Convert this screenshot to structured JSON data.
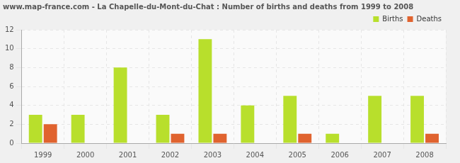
{
  "chart_data": {
    "type": "bar",
    "title": "www.map-france.com - La Chapelle-du-Mont-du-Chat : Number of births and deaths from 1999 to 2008",
    "categories": [
      "1999",
      "2000",
      "2001",
      "2002",
      "2003",
      "2004",
      "2005",
      "2006",
      "2007",
      "2008"
    ],
    "series": [
      {
        "name": "Births",
        "color": "#b8df2c",
        "values": [
          3,
          3,
          8,
          3,
          11,
          4,
          5,
          1,
          5,
          5
        ]
      },
      {
        "name": "Deaths",
        "color": "#e0632f",
        "values": [
          2,
          0,
          0,
          1,
          1,
          0,
          1,
          0,
          0,
          1
        ]
      }
    ],
    "ylim": [
      0,
      12
    ],
    "yticks": [
      0,
      2,
      4,
      6,
      8,
      10,
      12
    ],
    "grid": true,
    "legend": "upper right"
  }
}
